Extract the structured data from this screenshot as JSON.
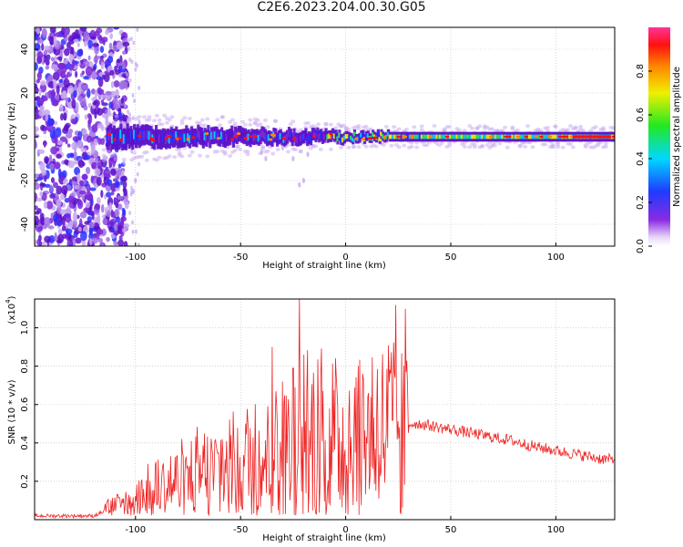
{
  "figure_title": "C2E6.2023.204.00.30.G05",
  "chart_data": [
    {
      "type": "heatmap",
      "title": "",
      "xlabel": "Height of straight line (km)",
      "ylabel": "Frequency (Hz)",
      "xlim": [
        -148,
        128
      ],
      "ylim": [
        -50,
        50
      ],
      "xticks": [
        -100,
        -50,
        0,
        50,
        100
      ],
      "yticks": [
        -40,
        -20,
        0,
        20,
        40
      ],
      "grid": true,
      "colorbar": {
        "label": "Normalized spectral amplitude",
        "range": [
          0,
          1
        ],
        "ticks": [
          "0.0",
          "0.2",
          "0.4",
          "0.6",
          "0.8"
        ],
        "colormap": "rainbow (white → purple → blue → cyan → green → yellow → orange → red → pink)"
      },
      "description_of_pattern": {
        "noise_region_x": [
          -148,
          -110
        ],
        "ridge_center_freq_hz": 0,
        "ridge_width_hz_near": 5,
        "ridge_peak_amplitude": 0.95
      }
    },
    {
      "type": "line",
      "title": "",
      "xlabel": "Height of straight line (km)",
      "ylabel": "SNR (10 * v/v)",
      "y_scale_label": "(x10",
      "y_scale_exponent": "4",
      "xlim": [
        -148,
        128
      ],
      "ylim": [
        0,
        1.15
      ],
      "xticks": [
        -100,
        -50,
        0,
        50,
        100
      ],
      "yticks": [
        0.2,
        0.4,
        0.6,
        0.8,
        1.0
      ],
      "grid": true,
      "series": [
        {
          "color": "#ee2222",
          "x": [
            -148,
            -120,
            -113,
            -105,
            -100,
            -95,
            -90,
            -85,
            -80,
            -75,
            -70,
            -65,
            -60,
            -55,
            -50,
            -45,
            -40,
            -35,
            -30,
            -28,
            -25,
            -23,
            -20,
            -15,
            -10,
            -5,
            0,
            5,
            10,
            15,
            20,
            25,
            30,
            35,
            40,
            50,
            60,
            70,
            80,
            90,
            100,
            110,
            120,
            128
          ],
          "y": [
            0.02,
            0.02,
            0.05,
            0.08,
            0.1,
            0.12,
            0.16,
            0.18,
            0.19,
            0.2,
            0.22,
            0.24,
            0.26,
            0.28,
            0.3,
            0.32,
            0.33,
            0.35,
            0.37,
            0.38,
            0.38,
            0.37,
            0.39,
            0.4,
            0.42,
            0.42,
            0.42,
            0.43,
            0.45,
            0.47,
            0.48,
            0.49,
            0.5,
            0.5,
            0.49,
            0.47,
            0.45,
            0.43,
            0.41,
            0.38,
            0.36,
            0.34,
            0.32,
            0.31
          ]
        }
      ],
      "spikes": [
        {
          "x": -35,
          "y": 0.9
        },
        {
          "x": -30,
          "y": 0.72
        },
        {
          "x": -25,
          "y": 0.79
        },
        {
          "x": -22,
          "y": 1.16
        },
        {
          "x": -20,
          "y": 0.86
        },
        {
          "x": -12,
          "y": 0.75
        },
        {
          "x": 8,
          "y": 0.76
        }
      ]
    }
  ]
}
